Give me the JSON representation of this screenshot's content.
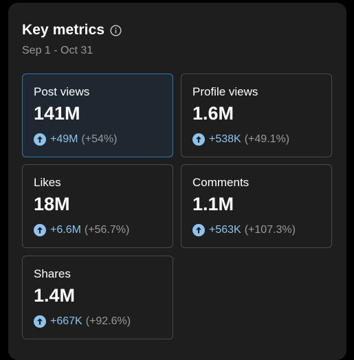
{
  "header": {
    "title": "Key metrics",
    "date_range": "Sep 1 - Oct 31"
  },
  "colors": {
    "background": "#1e1e1e",
    "card_border": "#4a4a4a",
    "selected_border": "#2f79b8",
    "accent_blue": "#8fc3ee",
    "muted_text": "#9a9a9a"
  },
  "metrics": [
    {
      "label": "Post views",
      "value": "141M",
      "delta": "+49M",
      "percent": "(+54%)",
      "selected": true,
      "icon": "arrow-up-circle-icon"
    },
    {
      "label": "Profile views",
      "value": "1.6M",
      "delta": "+538K",
      "percent": "(+49.1%)",
      "selected": false,
      "icon": "arrow-up-circle-icon"
    },
    {
      "label": "Likes",
      "value": "18M",
      "delta": "+6.6M",
      "percent": "(+56.7%)",
      "selected": false,
      "icon": "arrow-up-circle-icon"
    },
    {
      "label": "Comments",
      "value": "1.1M",
      "delta": "+563K",
      "percent": "(+107.3%)",
      "selected": false,
      "icon": "arrow-up-circle-icon"
    },
    {
      "label": "Shares",
      "value": "1.4M",
      "delta": "+667K",
      "percent": "(+92.6%)",
      "selected": false,
      "icon": "arrow-up-circle-icon"
    }
  ]
}
